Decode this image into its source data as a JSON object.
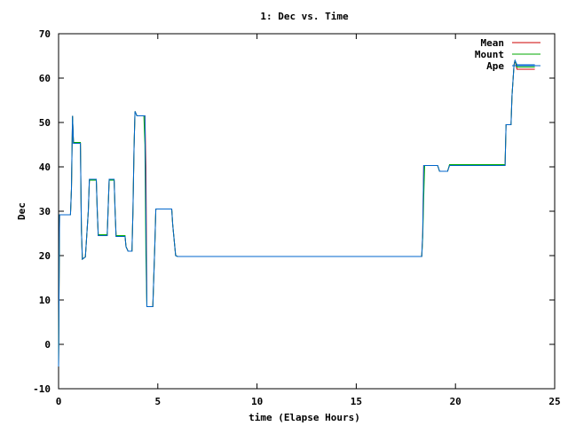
{
  "chart_data": {
    "type": "line",
    "title": "1: Dec vs. Time",
    "xlabel": "time (Elapse Hours)",
    "ylabel": "Dec",
    "xlim": [
      0,
      25
    ],
    "ylim": [
      -10,
      70
    ],
    "x_ticks": [
      0,
      5,
      10,
      15,
      20,
      25
    ],
    "y_ticks": [
      -10,
      0,
      10,
      20,
      30,
      40,
      50,
      60,
      70
    ],
    "grid": false,
    "legend_position": "top-right",
    "series": [
      {
        "name": "Mean",
        "color": "#cc0000",
        "points": [
          [
            0.0,
            -5
          ],
          [
            0.05,
            29.2
          ],
          [
            0.6,
            29.2
          ],
          [
            0.65,
            35
          ],
          [
            0.7,
            51.5
          ],
          [
            0.75,
            45.3
          ],
          [
            1.1,
            45.3
          ],
          [
            1.15,
            26
          ],
          [
            1.2,
            19.2
          ],
          [
            1.35,
            19.7
          ],
          [
            1.5,
            30
          ],
          [
            1.55,
            37
          ],
          [
            1.9,
            37
          ],
          [
            1.95,
            30
          ],
          [
            2.0,
            24.5
          ],
          [
            2.45,
            24.5
          ],
          [
            2.55,
            37
          ],
          [
            2.8,
            37
          ],
          [
            2.85,
            30
          ],
          [
            2.9,
            24.3
          ],
          [
            3.35,
            24.3
          ],
          [
            3.4,
            22
          ],
          [
            3.5,
            21
          ],
          [
            3.7,
            21
          ],
          [
            3.75,
            30
          ],
          [
            3.8,
            44
          ],
          [
            3.85,
            52.5
          ],
          [
            3.95,
            51.5
          ],
          [
            4.35,
            51.5
          ],
          [
            4.4,
            40
          ],
          [
            4.45,
            8.5
          ],
          [
            4.75,
            8.5
          ],
          [
            4.85,
            22
          ],
          [
            4.9,
            30.5
          ],
          [
            5.7,
            30.5
          ],
          [
            5.75,
            27
          ],
          [
            5.9,
            20
          ],
          [
            6.0,
            19.8
          ],
          [
            18.3,
            19.8
          ],
          [
            18.35,
            25
          ],
          [
            18.4,
            40.3
          ],
          [
            19.1,
            40.3
          ],
          [
            19.2,
            39
          ],
          [
            19.6,
            39
          ],
          [
            19.7,
            40.3
          ],
          [
            22.5,
            40.3
          ],
          [
            22.55,
            49.5
          ],
          [
            22.8,
            49.5
          ],
          [
            22.85,
            56
          ],
          [
            22.95,
            63
          ],
          [
            23.0,
            64
          ],
          [
            23.1,
            62
          ],
          [
            24.0,
            62
          ]
        ]
      },
      {
        "name": "Mount",
        "color": "#00aa00",
        "points": [
          [
            0.0,
            -5
          ],
          [
            0.05,
            29.2
          ],
          [
            0.6,
            29.2
          ],
          [
            0.65,
            35
          ],
          [
            0.7,
            51.5
          ],
          [
            0.75,
            45.5
          ],
          [
            1.1,
            45.5
          ],
          [
            1.15,
            26
          ],
          [
            1.2,
            19.2
          ],
          [
            1.35,
            19.7
          ],
          [
            1.5,
            30
          ],
          [
            1.55,
            37
          ],
          [
            1.9,
            37
          ],
          [
            1.95,
            30
          ],
          [
            2.0,
            24.7
          ],
          [
            2.45,
            24.7
          ],
          [
            2.55,
            37
          ],
          [
            2.8,
            37
          ],
          [
            2.85,
            30
          ],
          [
            2.9,
            24.5
          ],
          [
            3.35,
            24.5
          ],
          [
            3.4,
            22
          ],
          [
            3.5,
            21
          ],
          [
            3.7,
            21
          ],
          [
            3.75,
            30
          ],
          [
            3.8,
            44
          ],
          [
            3.85,
            52.5
          ],
          [
            3.95,
            51.5
          ],
          [
            4.3,
            51.5
          ],
          [
            4.35,
            45
          ],
          [
            4.4,
            20
          ],
          [
            4.45,
            8.5
          ],
          [
            4.75,
            8.5
          ],
          [
            4.85,
            22
          ],
          [
            4.9,
            30.5
          ],
          [
            5.7,
            30.5
          ],
          [
            5.75,
            27
          ],
          [
            5.9,
            20
          ],
          [
            6.0,
            19.8
          ],
          [
            18.3,
            19.8
          ],
          [
            18.35,
            24
          ],
          [
            18.4,
            33
          ],
          [
            18.45,
            40.3
          ],
          [
            19.1,
            40.3
          ],
          [
            19.2,
            39
          ],
          [
            19.6,
            39
          ],
          [
            19.7,
            40.5
          ],
          [
            22.5,
            40.5
          ],
          [
            22.55,
            49.5
          ],
          [
            22.8,
            49.5
          ],
          [
            22.85,
            56
          ],
          [
            22.95,
            63
          ],
          [
            23.0,
            64
          ],
          [
            23.1,
            62.5
          ],
          [
            24.0,
            62.5
          ]
        ]
      },
      {
        "name": "Ape",
        "color": "#0066cc",
        "points": [
          [
            0.0,
            -5
          ],
          [
            0.05,
            29.2
          ],
          [
            0.6,
            29.2
          ],
          [
            0.65,
            35
          ],
          [
            0.7,
            51.5
          ],
          [
            0.75,
            45.3
          ],
          [
            1.1,
            45.3
          ],
          [
            1.15,
            26
          ],
          [
            1.2,
            19.2
          ],
          [
            1.35,
            19.7
          ],
          [
            1.5,
            30
          ],
          [
            1.55,
            37.2
          ],
          [
            1.9,
            37.2
          ],
          [
            1.95,
            30
          ],
          [
            2.0,
            24.5
          ],
          [
            2.45,
            24.5
          ],
          [
            2.55,
            37.2
          ],
          [
            2.8,
            37.2
          ],
          [
            2.85,
            30
          ],
          [
            2.9,
            24.3
          ],
          [
            3.35,
            24.3
          ],
          [
            3.4,
            22
          ],
          [
            3.5,
            21
          ],
          [
            3.7,
            21
          ],
          [
            3.75,
            30
          ],
          [
            3.8,
            44
          ],
          [
            3.85,
            52.5
          ],
          [
            3.95,
            51.5
          ],
          [
            4.35,
            51.5
          ],
          [
            4.4,
            30
          ],
          [
            4.45,
            8.5
          ],
          [
            4.75,
            8.5
          ],
          [
            4.85,
            22
          ],
          [
            4.9,
            30.5
          ],
          [
            5.7,
            30.5
          ],
          [
            5.75,
            27
          ],
          [
            5.9,
            20
          ],
          [
            6.0,
            19.8
          ],
          [
            18.3,
            19.8
          ],
          [
            18.35,
            25
          ],
          [
            18.4,
            40.3
          ],
          [
            19.1,
            40.3
          ],
          [
            19.2,
            39
          ],
          [
            19.6,
            39
          ],
          [
            19.7,
            40.3
          ],
          [
            22.5,
            40.3
          ],
          [
            22.55,
            49.5
          ],
          [
            22.8,
            49.5
          ],
          [
            22.85,
            56
          ],
          [
            22.95,
            63
          ],
          [
            23.0,
            64
          ],
          [
            23.1,
            63
          ],
          [
            24.0,
            63
          ]
        ]
      }
    ]
  }
}
